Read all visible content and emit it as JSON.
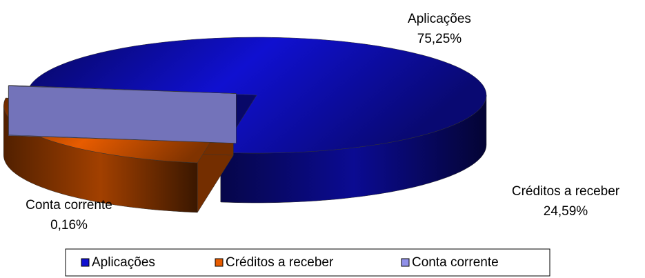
{
  "chart_data": {
    "type": "pie3d",
    "categories": [
      "Aplicações",
      "Créditos a receber",
      "Conta corrente"
    ],
    "values": [
      75.25,
      24.59,
      0.16
    ],
    "value_labels": [
      "75,25%",
      "24,59%",
      "0,16%"
    ],
    "colors": [
      "#1010d0",
      "#e85c00",
      "#9090e8"
    ],
    "legend": "bottom"
  }
}
